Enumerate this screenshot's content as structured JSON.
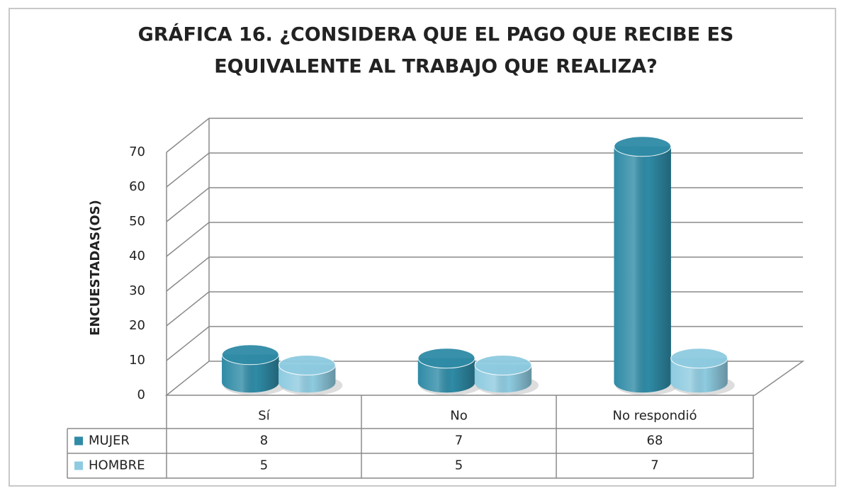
{
  "chart_data": {
    "type": "bar3d",
    "title": [
      "GRÁFICA 16. ¿CONSIDERA QUE EL PAGO QUE RECIBE ES",
      "EQUIVALENTE AL TRABAJO QUE REALIZA?"
    ],
    "y_label": "ENCUESTADAS(OS)",
    "categories": [
      "Sí",
      "No",
      "No respondió"
    ],
    "series": [
      {
        "name": "MUJER",
        "color": "#2f8ba6",
        "values": [
          8,
          7,
          68
        ]
      },
      {
        "name": "HOMBRE",
        "color": "#8ecbe0",
        "values": [
          5,
          5,
          7
        ]
      }
    ],
    "ylim": [
      0,
      70
    ],
    "yticks": [
      0,
      10,
      20,
      30,
      40,
      50,
      60,
      70
    ],
    "grid": true,
    "data_table": true
  }
}
